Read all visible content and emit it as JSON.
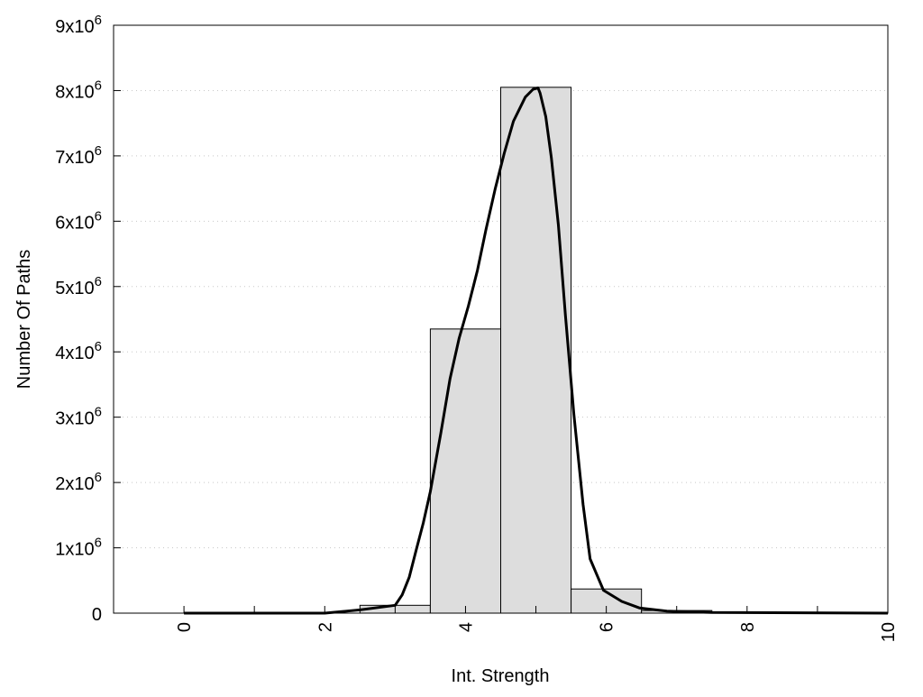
{
  "chart_data": {
    "type": "bar",
    "title": "",
    "xlabel": "Int. Strength",
    "ylabel": "Number Of Paths",
    "xlim": [
      -1,
      10
    ],
    "ylim": [
      0,
      9000000
    ],
    "grid": "horizontal dotted",
    "x_ticks": [
      0,
      1,
      2,
      3,
      4,
      5,
      6,
      7,
      8,
      9,
      10
    ],
    "x_tick_labels": [
      {
        "value": 0,
        "label": "0"
      },
      {
        "value": 2,
        "label": "2"
      },
      {
        "value": 4,
        "label": "4"
      },
      {
        "value": 6,
        "label": "6"
      },
      {
        "value": 8,
        "label": "8"
      },
      {
        "value": 10,
        "label": "10"
      }
    ],
    "y_tick_labels": [
      {
        "value": 0,
        "mantissa": "0",
        "exp": ""
      },
      {
        "value": 1000000,
        "mantissa": "1x10",
        "exp": "6"
      },
      {
        "value": 2000000,
        "mantissa": "2x10",
        "exp": "6"
      },
      {
        "value": 3000000,
        "mantissa": "3x10",
        "exp": "6"
      },
      {
        "value": 4000000,
        "mantissa": "4x10",
        "exp": "6"
      },
      {
        "value": 5000000,
        "mantissa": "5x10",
        "exp": "6"
      },
      {
        "value": 6000000,
        "mantissa": "6x10",
        "exp": "6"
      },
      {
        "value": 7000000,
        "mantissa": "7x10",
        "exp": "6"
      },
      {
        "value": 8000000,
        "mantissa": "8x10",
        "exp": "6"
      },
      {
        "value": 9000000,
        "mantissa": "9x10",
        "exp": "6"
      }
    ],
    "bar_width": 1,
    "bars": [
      {
        "x": 3,
        "value": 120000
      },
      {
        "x": 4,
        "value": 4350000
      },
      {
        "x": 5,
        "value": 8050000
      },
      {
        "x": 6,
        "value": 370000
      },
      {
        "x": 7,
        "value": 40000
      }
    ],
    "bar_color": "#dddddd",
    "line_color": "#000000",
    "curve": {
      "x": [
        0,
        1.6,
        2.0,
        2.5,
        3.0,
        3.1,
        3.2,
        3.3,
        3.4,
        3.5,
        3.65,
        3.78,
        3.91,
        4.04,
        4.17,
        4.29,
        4.42,
        4.55,
        4.68,
        4.85,
        4.96,
        5.03,
        5.06,
        5.14,
        5.22,
        5.32,
        5.42,
        5.54,
        5.67,
        5.77,
        5.96,
        6.22,
        6.47,
        6.86,
        7.5,
        10
      ],
      "y": [
        0,
        0,
        0,
        50000,
        120000,
        280000,
        550000,
        970000,
        1380000,
        1860000,
        2760000,
        3590000,
        4210000,
        4700000,
        5250000,
        5870000,
        6490000,
        7040000,
        7530000,
        7900000,
        8020000,
        8040000,
        7960000,
        7600000,
        6970000,
        5940000,
        4560000,
        3040000,
        1660000,
        830000,
        350000,
        180000,
        80000,
        30000,
        10000,
        0
      ]
    }
  }
}
